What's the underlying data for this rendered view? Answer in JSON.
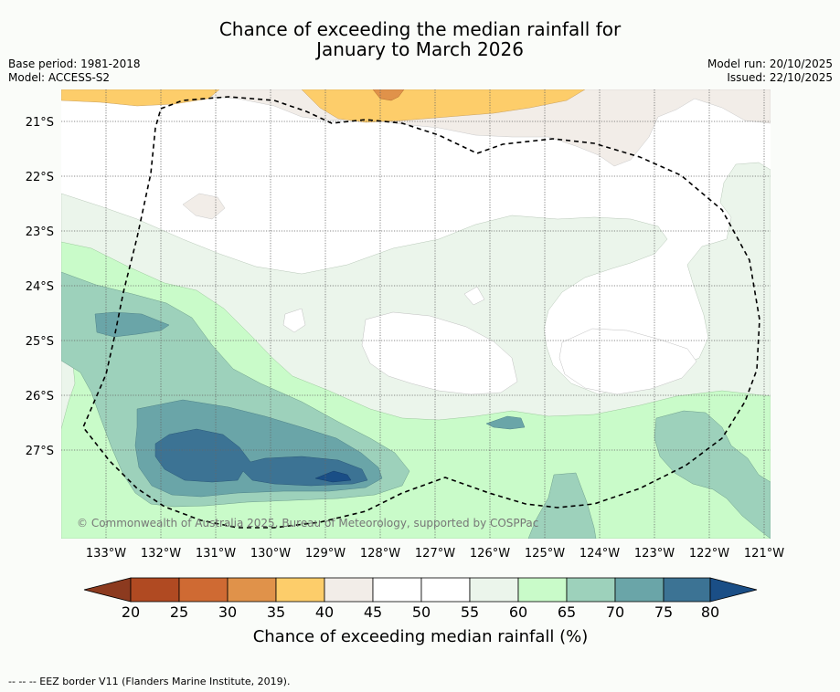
{
  "title": {
    "line1": "Chance of exceeding the median rainfall for",
    "line2": "January to March 2026"
  },
  "meta": {
    "base_period": "Base period: 1981-2018",
    "model": "Model: ACCESS-S2",
    "model_run": "Model run: 20/10/2025",
    "issued": "Issued: 22/10/2025"
  },
  "map": {
    "lat_labels": [
      "21°S",
      "22°S",
      "23°S",
      "24°S",
      "25°S",
      "26°S",
      "27°S"
    ],
    "lon_labels": [
      "133°W",
      "132°W",
      "131°W",
      "130°W",
      "129°W",
      "128°W",
      "127°W",
      "126°W",
      "125°W",
      "124°W",
      "123°W",
      "122°W",
      "121°W"
    ],
    "copyright": "© Commonwealth of Australia 2025, Bureau of Meteorology, supported by COSPPac"
  },
  "colorbar": {
    "labels": [
      "20",
      "25",
      "30",
      "35",
      "40",
      "45",
      "50",
      "55",
      "60",
      "65",
      "70",
      "75",
      "80"
    ],
    "colors": [
      "#8c3a1f",
      "#b04a22",
      "#cf6a33",
      "#e0924a",
      "#fdcd6a",
      "#f2ede8",
      "#ffffff",
      "#ffffff",
      "#ebf5eb",
      "#c9fbc9",
      "#9dd1bb",
      "#6aa5a8",
      "#3c7394",
      "#1a4e86"
    ],
    "title": "Chance of exceeding median rainfall (%)"
  },
  "footer": {
    "legend": "--  --  -- EEZ border V11 (Flanders Marine Institute, 2019)."
  }
}
